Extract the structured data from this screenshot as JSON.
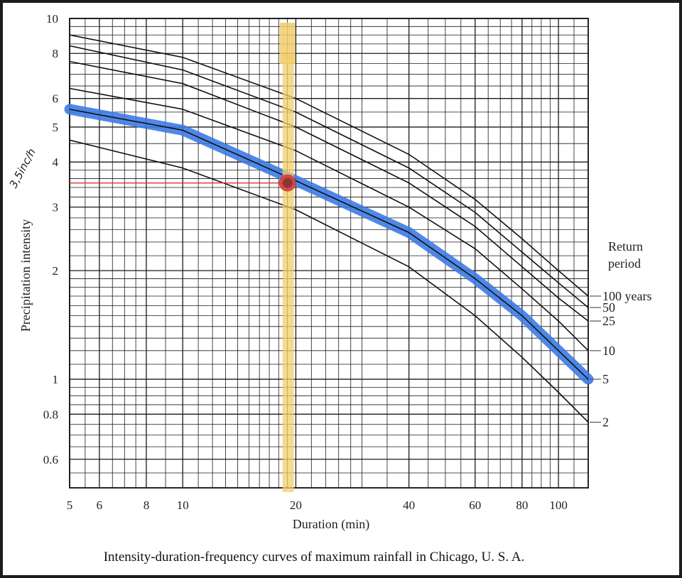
{
  "caption": "Intensity-duration-frequency curves of maximum rainfall in Chicago, U. S. A.",
  "colors": {
    "background": "#1c1c1c",
    "paper": "#ffffff",
    "grid": "#1a1a1a",
    "highlight_curve": "#3d7be6",
    "duration_band": "#f2cd6a",
    "intensity_line": "#e23030",
    "marker": "#d63a3a"
  },
  "chart_data": {
    "type": "line",
    "title": "",
    "xlabel": "Duration (min)",
    "ylabel": "Precipitation intensity",
    "xscale": "log",
    "yscale": "log",
    "xlim": [
      5,
      120
    ],
    "ylim": [
      0.5,
      10
    ],
    "x_ticks": [
      {
        "value": 5,
        "label": "5"
      },
      {
        "value": 6,
        "label": "6"
      },
      {
        "value": 8,
        "label": "8"
      },
      {
        "value": 10,
        "label": "10"
      },
      {
        "value": 20,
        "label": "20"
      },
      {
        "value": 40,
        "label": "40"
      },
      {
        "value": 60,
        "label": "60"
      },
      {
        "value": 80,
        "label": "80"
      },
      {
        "value": 100,
        "label": "100"
      }
    ],
    "y_ticks": [
      {
        "value": 0.6,
        "label": "0.6"
      },
      {
        "value": 0.8,
        "label": "0.8"
      },
      {
        "value": 1,
        "label": "1"
      },
      {
        "value": 2,
        "label": "2"
      },
      {
        "value": 3,
        "label": "3"
      },
      {
        "value": 4,
        "label": "4"
      },
      {
        "value": 5,
        "label": "5"
      },
      {
        "value": 6,
        "label": "6"
      },
      {
        "value": 8,
        "label": "8"
      },
      {
        "value": 10,
        "label": "10"
      }
    ],
    "x_grid": [
      5,
      5.5,
      6,
      6.5,
      7,
      7.5,
      8,
      9,
      10,
      11,
      12,
      13,
      14,
      15,
      16,
      17,
      18,
      19,
      20,
      22,
      24,
      26,
      28,
      30,
      35,
      40,
      45,
      50,
      55,
      60,
      65,
      70,
      75,
      80,
      85,
      90,
      95,
      100,
      110,
      120
    ],
    "y_grid": [
      0.5,
      0.55,
      0.6,
      0.65,
      0.7,
      0.75,
      0.8,
      0.85,
      0.9,
      0.95,
      1,
      1.1,
      1.2,
      1.3,
      1.4,
      1.5,
      1.6,
      1.7,
      1.8,
      1.9,
      2,
      2.2,
      2.4,
      2.6,
      2.8,
      3,
      3.2,
      3.4,
      3.6,
      3.8,
      4,
      4.5,
      5,
      5.5,
      6,
      6.5,
      7,
      7.5,
      8,
      8.5,
      9,
      9.5,
      10
    ],
    "legend_title": "Return period",
    "legend_position": "right",
    "series": [
      {
        "name": "100 years",
        "x": [
          5,
          10,
          20,
          40,
          60,
          80,
          100,
          120
        ],
        "y": [
          9.0,
          7.8,
          6.0,
          4.2,
          3.15,
          2.45,
          2.0,
          1.7
        ]
      },
      {
        "name": "50",
        "x": [
          5,
          10,
          20,
          40,
          60,
          80,
          100,
          120
        ],
        "y": [
          8.4,
          7.2,
          5.5,
          3.85,
          2.9,
          2.25,
          1.85,
          1.58
        ]
      },
      {
        "name": "25",
        "x": [
          5,
          10,
          20,
          40,
          60,
          80,
          100,
          120
        ],
        "y": [
          7.6,
          6.6,
          5.0,
          3.5,
          2.65,
          2.05,
          1.68,
          1.45
        ]
      },
      {
        "name": "10",
        "x": [
          5,
          10,
          20,
          40,
          60,
          80,
          100,
          120
        ],
        "y": [
          6.4,
          5.6,
          4.3,
          3.0,
          2.3,
          1.78,
          1.45,
          1.2
        ]
      },
      {
        "name": "5",
        "x": [
          5,
          10,
          20,
          40,
          60,
          80,
          100,
          120
        ],
        "y": [
          5.6,
          4.9,
          3.55,
          2.55,
          1.9,
          1.5,
          1.2,
          1.0
        ]
      },
      {
        "name": "2",
        "x": [
          5,
          10,
          20,
          40,
          60,
          80,
          100,
          120
        ],
        "y": [
          4.6,
          3.85,
          2.95,
          2.05,
          1.5,
          1.15,
          0.92,
          0.76
        ]
      }
    ],
    "annotations": {
      "highlight_series": "5",
      "duration_band_x": 19,
      "intensity_line_y": 3.5,
      "marker": {
        "x": 19,
        "y": 3.5
      },
      "handwritten_label": "3,5inc/h"
    }
  }
}
